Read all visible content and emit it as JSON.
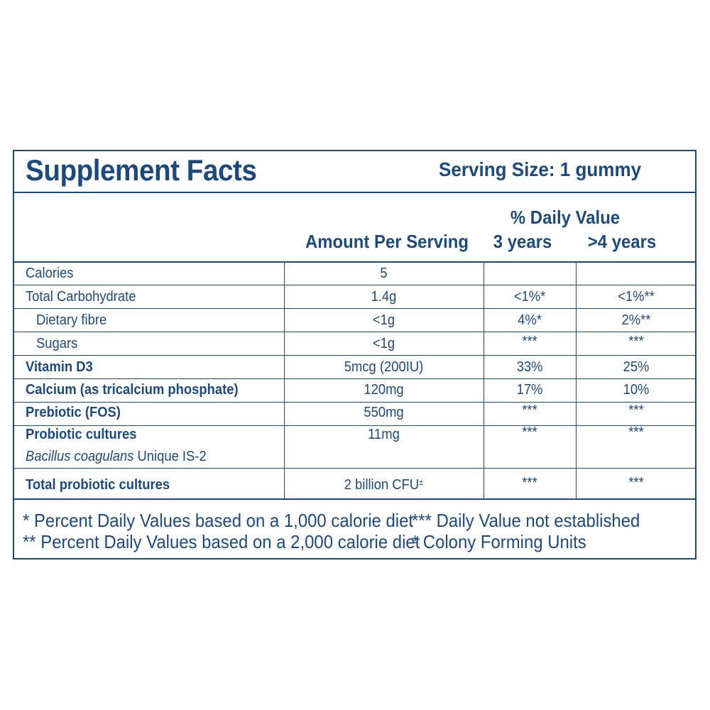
{
  "panel": {
    "title": "Supplement Facts",
    "serving_size": "Serving Size: 1 gummy"
  },
  "header": {
    "daily_value": "% Daily Value",
    "amount_per_serving": "Amount Per Serving",
    "col_3_years": "3 years",
    "col_4_years": ">4 years"
  },
  "rows": [
    {
      "label": "Calories",
      "amount": "5",
      "dv3": "",
      "dv4": ""
    },
    {
      "label": "Total Carbohydrate",
      "amount": "1.4g",
      "dv3": "<1%*",
      "dv4": "<1%**"
    },
    {
      "label": "Dietary fibre",
      "amount": "<1g",
      "dv3": "4%*",
      "dv4": "2%**"
    },
    {
      "label": "Sugars",
      "amount": "<1g",
      "dv3": "***",
      "dv4": "***"
    },
    {
      "label": "Vitamin D3",
      "amount": "5mcg (200IU)",
      "dv3": "33%",
      "dv4": "25%"
    },
    {
      "label": "Calcium (as tricalcium phosphate)",
      "amount": "120mg",
      "dv3": "17%",
      "dv4": "10%"
    },
    {
      "label": "Prebiotic (FOS)",
      "amount": "550mg",
      "dv3": "***",
      "dv4": "***"
    },
    {
      "label": "Probiotic cultures",
      "amount": "11mg",
      "dv3": "***",
      "dv4": "***"
    },
    {
      "label_italic": "Bacillus coagulans",
      "label_rest": " Unique IS-2"
    },
    {
      "label": "Total probiotic cultures",
      "amount": "2 billion CFU",
      "amount_sup": "±",
      "dv3": "***",
      "dv4": "***"
    }
  ],
  "footnotes": {
    "f1": "* Percent Daily Values based on a 1,000 calorie diet",
    "f2": "** Percent Daily Values based on a 2,000 calorie diet",
    "f3": "*** Daily Value not established",
    "f4_symbol": "±",
    "f4": " Colony Forming Units"
  },
  "colors": {
    "text": "#1b4a7e",
    "background": "#ffffff"
  }
}
